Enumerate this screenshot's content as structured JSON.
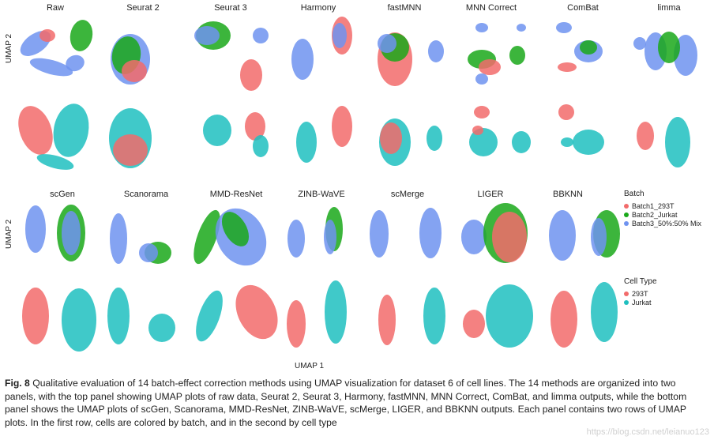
{
  "figure": {
    "axis_y_label": "UMAP 2",
    "axis_x_label": "UMAP 1",
    "top_panel_methods": [
      "Raw",
      "Seurat 2",
      "Seurat 3",
      "Harmony",
      "fastMNN",
      "MNN Correct",
      "ComBat",
      "limma"
    ],
    "bottom_panel_methods": [
      "scGen",
      "Scanorama",
      "MMD-ResNet",
      "ZINB-WaVE",
      "scMerge",
      "LIGER",
      "BBKNN"
    ],
    "legend_batch": {
      "title": "Batch",
      "items": [
        {
          "label": "Batch1_293T",
          "color": "#f26b6b"
        },
        {
          "label": "Batch2_Jurkat",
          "color": "#1aa81a"
        },
        {
          "label": "Batch3_50%:50% Mix",
          "color": "#6f93f0"
        }
      ]
    },
    "legend_celltype": {
      "title": "Cell Type",
      "items": [
        {
          "label": "293T",
          "color": "#f26b6b"
        },
        {
          "label": "Jurkat",
          "color": "#1fbfbf"
        }
      ]
    }
  },
  "caption": {
    "label": "Fig. 8",
    "text": "Qualitative evaluation of 14 batch-effect correction methods using UMAP visualization for dataset 6 of cell lines. The 14 methods are organized into two panels, with the top panel showing UMAP plots of raw data, Seurat 2, Seurat 3, Harmony, fastMNN, MNN Correct, ComBat, and limma outputs, while the bottom panel shows the UMAP plots of scGen, Scanorama, MMD-ResNet, ZINB-WaVE, scMerge, LIGER, and BBKNN outputs. Each panel contains two rows of UMAP plots. In the first row, cells are colored by batch, and in the second by cell type"
  },
  "watermark": "https://blog.csdn.net/leianuo123"
}
